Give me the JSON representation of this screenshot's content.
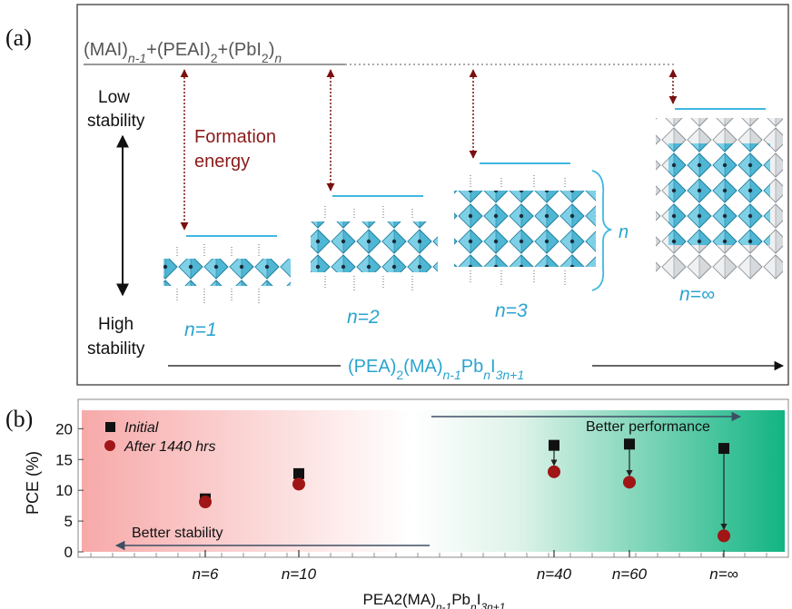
{
  "panel_a": {
    "label": "(a)",
    "reactants": "(MAI)n-1+(PEAI)2+(PbI2)n",
    "low_stability": [
      "Low",
      "stability"
    ],
    "high_stability": [
      "High",
      "stability"
    ],
    "formation_energy": [
      "Formation",
      "energy"
    ],
    "phases": [
      {
        "n_label": "n=1"
      },
      {
        "n_label": "n=2"
      },
      {
        "n_label": "n=3"
      },
      {
        "n_label": "n=∞"
      }
    ],
    "n_bracket": "n",
    "formula": "(PEA)2(MA)n-1PbnI3n+1"
  },
  "panel_b": {
    "label": "(b)",
    "better_performance": "Better performance",
    "better_stability": "Better stability",
    "colors": {
      "stability": "#f7b3b3",
      "performance": "#1fb884",
      "initial": "#111111",
      "aged": "#a01515"
    }
  },
  "chart_data": {
    "type": "scatter",
    "ylabel": "PCE (%)",
    "xlabel": "PEA2(MA)n-1PbnI3n+1",
    "ylim": [
      0,
      23
    ],
    "yticks": [
      0,
      5,
      10,
      15,
      20
    ],
    "categories": [
      "n=6",
      "n=10",
      "n=40",
      "n=60",
      "n=∞"
    ],
    "legend_position": "top-left",
    "series": [
      {
        "name": "Initial",
        "marker": "square",
        "values": [
          8.6,
          12.7,
          17.3,
          17.5,
          16.8
        ]
      },
      {
        "name": "After 1440 hrs",
        "marker": "circle",
        "values": [
          8.1,
          11.0,
          13.0,
          11.3,
          2.6
        ]
      }
    ]
  }
}
